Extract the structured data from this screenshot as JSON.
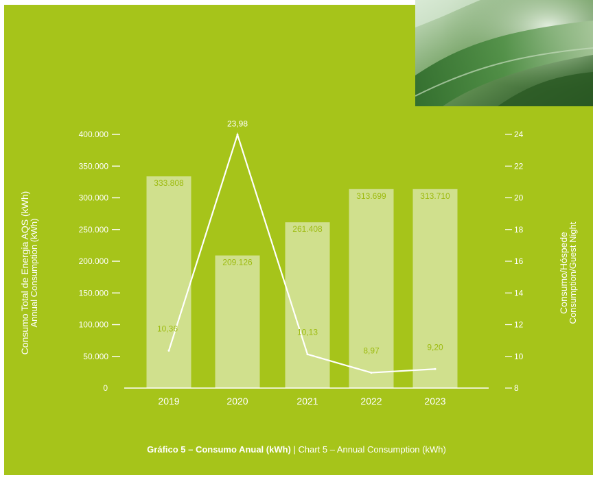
{
  "colors": {
    "background": "#a6c41a",
    "bar": "#dce8ae",
    "bar_label": "#9dbb10",
    "line": "#ffffff",
    "text": "#ffffff"
  },
  "axis_left": {
    "title": "Consumo Total de Energia AQS (kWh)",
    "subtitle": "Annual Consumption (kWh)"
  },
  "axis_right": {
    "title": "Consumo/Hóspede",
    "subtitle": "Consumption/Guest Night"
  },
  "caption": {
    "bold": "Gráfico 5 – Consumo Anual (kWh)",
    "separator": " | ",
    "rest": "Chart 5 – Annual Consumption (kWh)"
  },
  "decor": {
    "image": "aloe-leaf-photo"
  },
  "chart_data": {
    "type": "bar",
    "categories": [
      "2019",
      "2020",
      "2021",
      "2022",
      "2023"
    ],
    "series": [
      {
        "kind": "bar",
        "axis": "left",
        "values": [
          333808,
          209126,
          261408,
          313699,
          313710
        ],
        "labels": [
          "333.808",
          "209.126",
          "261.408",
          "313.699",
          "313.710"
        ]
      },
      {
        "kind": "line",
        "axis": "right",
        "values": [
          10.36,
          23.98,
          10.13,
          8.97,
          9.2
        ],
        "labels": [
          "10,36",
          "23,98",
          "10,13",
          "8,97",
          "9,20"
        ]
      }
    ],
    "y_left": {
      "ylim": [
        0,
        400000
      ],
      "ticks": [
        0,
        50000,
        100000,
        150000,
        200000,
        250000,
        300000,
        350000,
        400000
      ],
      "tick_labels": [
        "0",
        "50.000",
        "100.000",
        "150.000",
        "200.000",
        "250.000",
        "300.000",
        "350.000",
        "400.000"
      ]
    },
    "y_right": {
      "ylim": [
        8,
        24
      ],
      "ticks": [
        8,
        10,
        12,
        14,
        16,
        18,
        20,
        22,
        24
      ],
      "tick_labels": [
        "8",
        "10",
        "12",
        "14",
        "16",
        "18",
        "20",
        "22",
        "24"
      ]
    },
    "grid": false,
    "legend": "none"
  }
}
